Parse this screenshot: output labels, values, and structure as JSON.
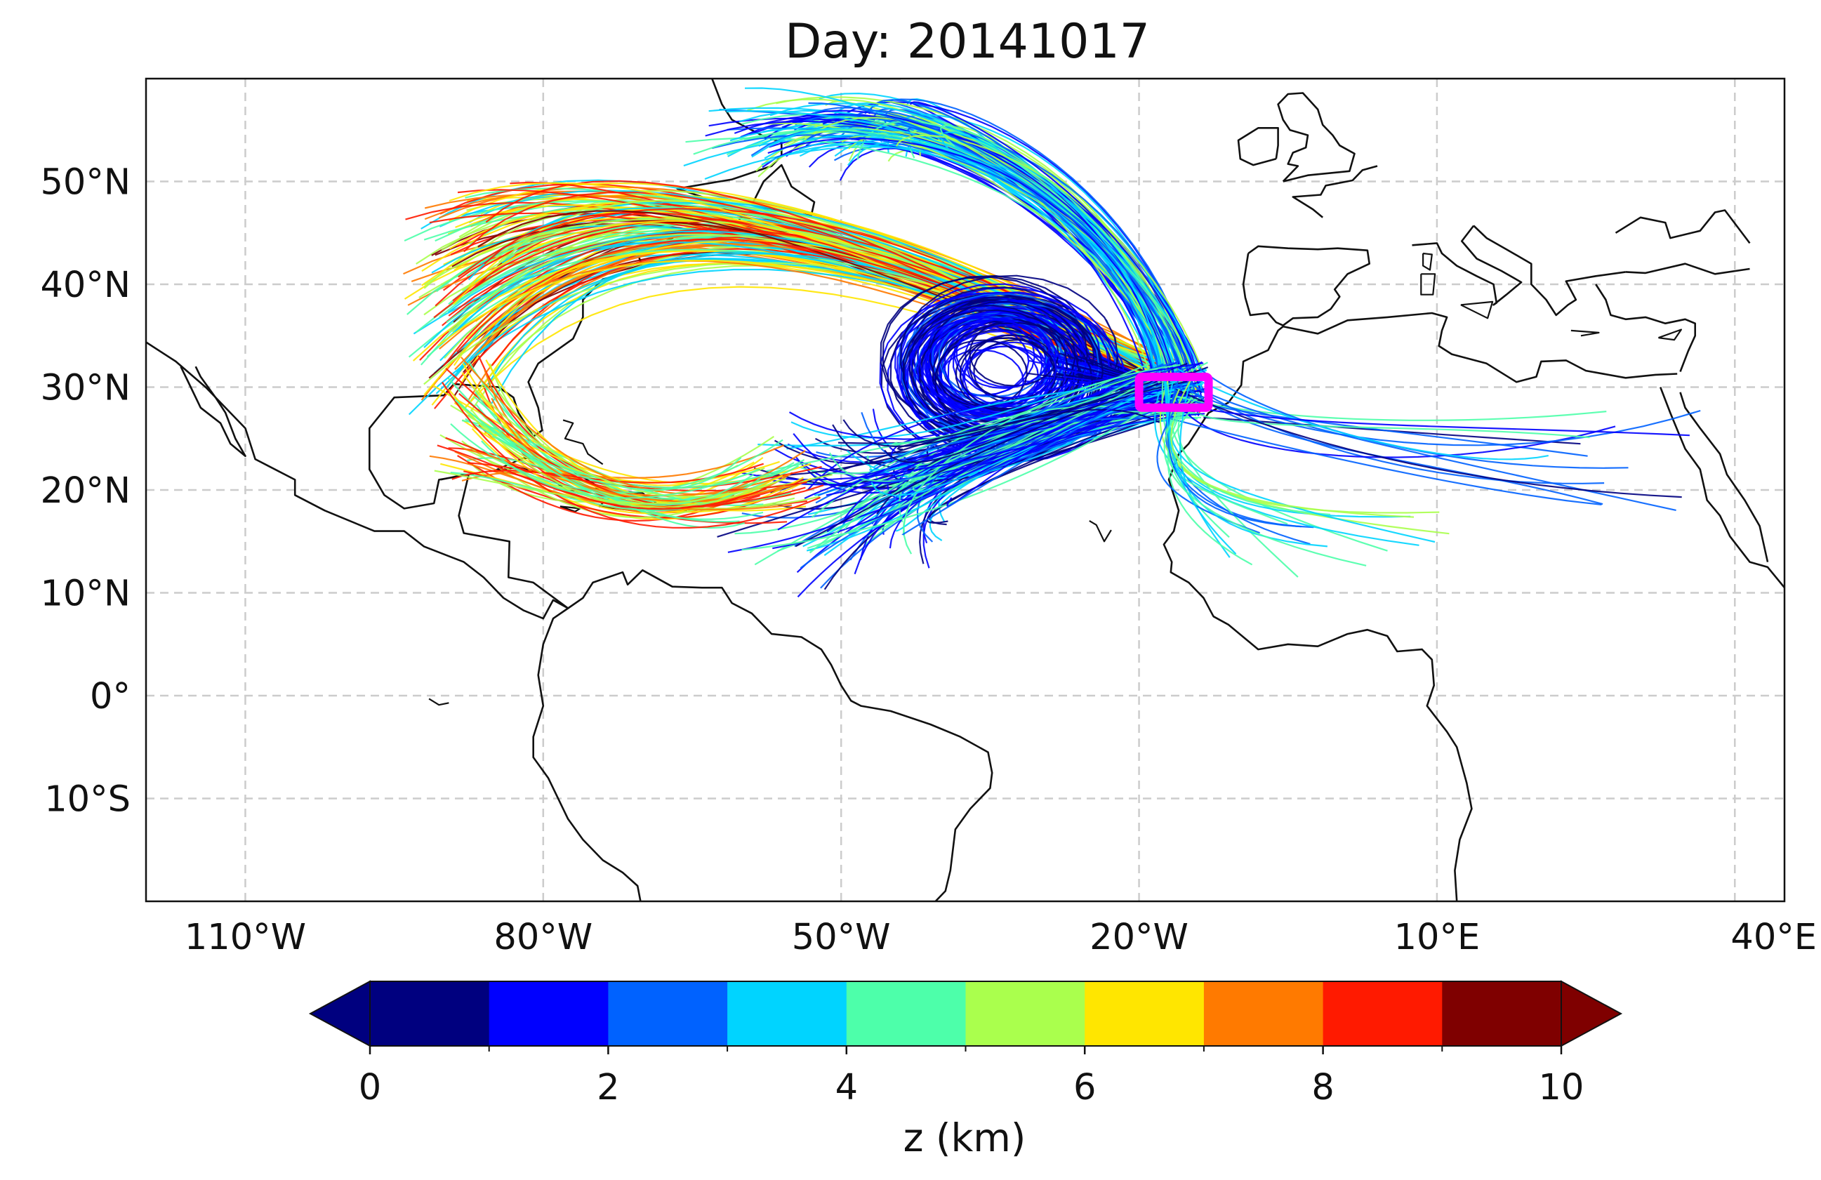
{
  "title": "Day: 20141017",
  "map": {
    "lon_range": [
      -120,
      45
    ],
    "lat_range": [
      -20,
      60
    ],
    "gridlines": true,
    "lon_ticks": [
      {
        "value": -110,
        "label": "110°W"
      },
      {
        "value": -80,
        "label": "80°W"
      },
      {
        "value": -50,
        "label": "50°W"
      },
      {
        "value": -20,
        "label": "20°W"
      },
      {
        "value": 10,
        "label": "10°E"
      },
      {
        "value": 40,
        "label": "40°E"
      }
    ],
    "lat_ticks": [
      {
        "value": 50,
        "label": "50°N"
      },
      {
        "value": 40,
        "label": "40°N"
      },
      {
        "value": 30,
        "label": "30°N"
      },
      {
        "value": 20,
        "label": "20°N"
      },
      {
        "value": 10,
        "label": "10°N"
      },
      {
        "value": 0,
        "label": "0°"
      },
      {
        "value": -10,
        "label": "10°S"
      }
    ],
    "highlight_box": {
      "lon_min": -20,
      "lon_max": -13,
      "lat_min": 28,
      "lat_max": 31,
      "color": "#ff00ff"
    },
    "trajectory_colormap": "jet",
    "trajectory_value": "z (km)"
  },
  "colorbar": {
    "label": "z (km)",
    "ticks": [
      {
        "value": 0,
        "label": "0"
      },
      {
        "value": 2,
        "label": "2"
      },
      {
        "value": 4,
        "label": "4"
      },
      {
        "value": 6,
        "label": "6"
      },
      {
        "value": 8,
        "label": "8"
      },
      {
        "value": 10,
        "label": "10"
      }
    ],
    "bins": [
      {
        "from": 0,
        "to": 1,
        "color": "#00007f"
      },
      {
        "from": 1,
        "to": 2,
        "color": "#0000ff"
      },
      {
        "from": 2,
        "to": 3,
        "color": "#0062ff"
      },
      {
        "from": 3,
        "to": 4,
        "color": "#00d4ff"
      },
      {
        "from": 4,
        "to": 5,
        "color": "#4dffaa"
      },
      {
        "from": 5,
        "to": 6,
        "color": "#aaff4d"
      },
      {
        "from": 6,
        "to": 7,
        "color": "#ffe600"
      },
      {
        "from": 7,
        "to": 8,
        "color": "#ff7a00"
      },
      {
        "from": 8,
        "to": 9,
        "color": "#ff1a00"
      },
      {
        "from": 9,
        "to": 10,
        "color": "#7f0000"
      }
    ],
    "extend": "both"
  }
}
